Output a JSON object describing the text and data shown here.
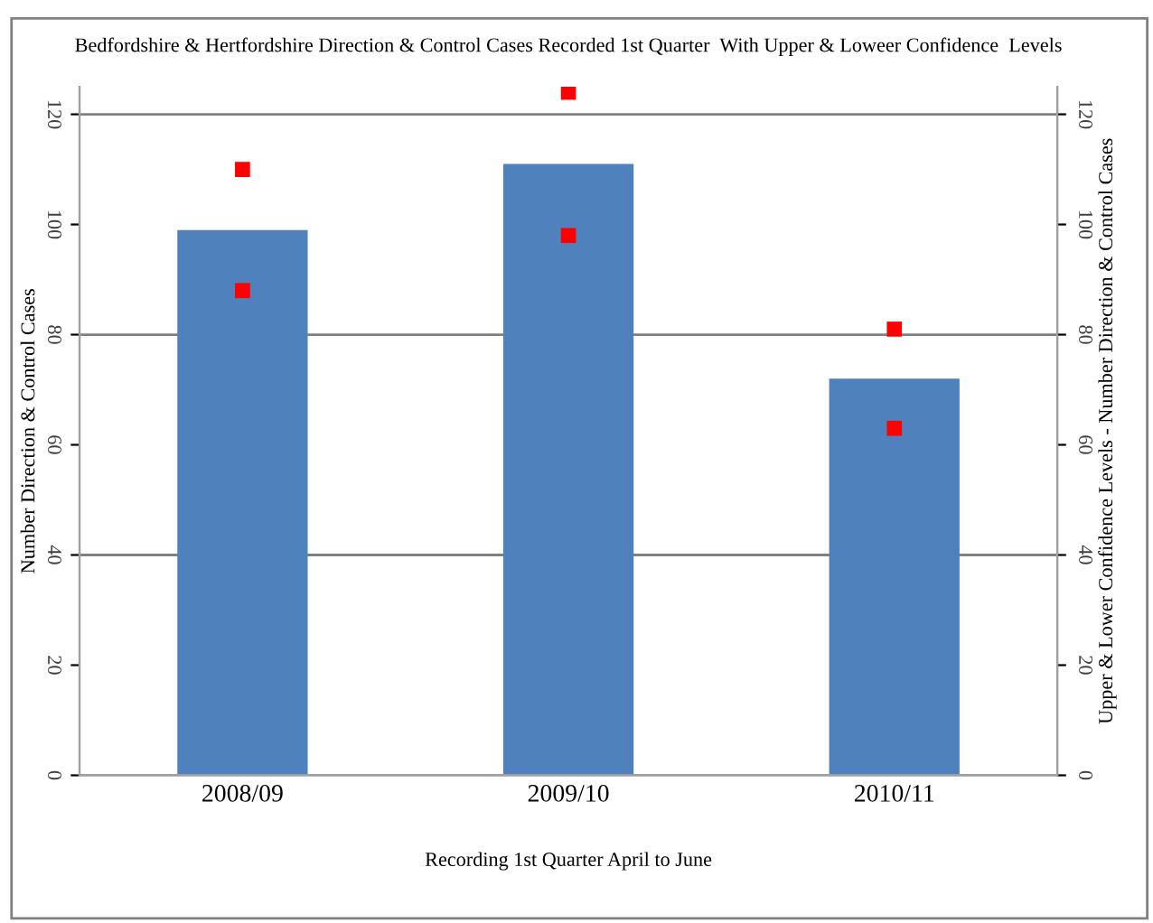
{
  "chart_data": {
    "type": "bar",
    "title": "Bedfordshire & Hertfordshire Direction & Control Cases Recorded 1st Quarter  With Upper & Loweer Confidence  Levels",
    "xlabel": "Recording 1st Quarter April to June",
    "ylabel": "Number Direction & Control Cases",
    "y2label": "Upper & Lower Confidence Levels - Number Direction & Control Cases",
    "categories": [
      "2008/09",
      "2009/10",
      "2010/11"
    ],
    "series": [
      {
        "color": "#4f81bd",
        "values": [
          99,
          111,
          72
        ]
      },
      {
        "type": "scatter",
        "marker": "square",
        "color": "#ff0000",
        "values": [
          110,
          124,
          81
        ]
      },
      {
        "type": "scatter",
        "marker": "square",
        "color": "#ff0000",
        "values": [
          88,
          98,
          63
        ]
      }
    ],
    "ylim": [
      0,
      125
    ],
    "yticks": [
      0,
      20,
      40,
      60,
      80,
      100,
      120
    ],
    "y2lim": [
      0,
      125
    ],
    "y2ticks": [
      0,
      20,
      40,
      60,
      80,
      100,
      120
    ],
    "grid": "y",
    "legend": false
  }
}
